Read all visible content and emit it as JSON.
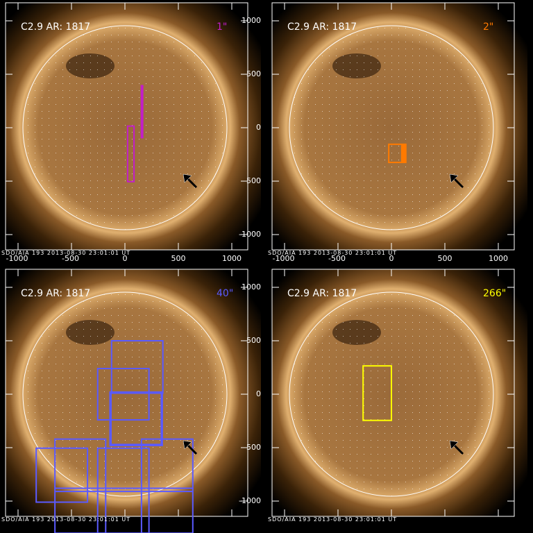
{
  "caption_left": "C2.9 AR: 1817",
  "footer": "SDO/AIA 193 2013-08-30 23:01:01 UT",
  "x_ticks": [
    "-1000",
    "-500",
    "0",
    "500",
    "1000"
  ],
  "y_ticks": [
    "1000",
    "500",
    "0",
    "-500",
    "-1000"
  ],
  "panels": [
    {
      "scale_label": "1\"",
      "color": "#c21ec8",
      "boxes": [
        [
          25,
          15,
          85,
          -505
        ]
      ],
      "thick_lines": [
        [
          160,
          400,
          160,
          -100
        ]
      ]
    },
    {
      "scale_label": "2\"",
      "color": "#ff7a00",
      "boxes": [
        [
          -25,
          -155,
          135,
          -325
        ]
      ],
      "filled": [
        [
          90,
          -155,
          135,
          -325
        ]
      ]
    },
    {
      "scale_label": "40\"",
      "color": "#5a5aff",
      "boxes": [
        [
          -125,
          500,
          355,
          10
        ],
        [
          -255,
          240,
          225,
          -240
        ],
        [
          -830,
          -505,
          -350,
          -1010
        ],
        [
          -655,
          -420,
          -180,
          -1300
        ],
        [
          -255,
          -505,
          225,
          -1300
        ],
        [
          155,
          -420,
          635,
          -1300
        ]
      ],
      "thick_boxes": [
        [
          -135,
          15,
          345,
          -475
        ]
      ],
      "hlines": [
        [
          -655,
          -880,
          635
        ],
        [
          -655,
          -910,
          635
        ]
      ]
    },
    {
      "scale_label": "266\"",
      "color": "#ffff00",
      "boxes": [
        [
          -265,
          265,
          0,
          -245
        ]
      ]
    }
  ],
  "arrow_color": "#000000"
}
